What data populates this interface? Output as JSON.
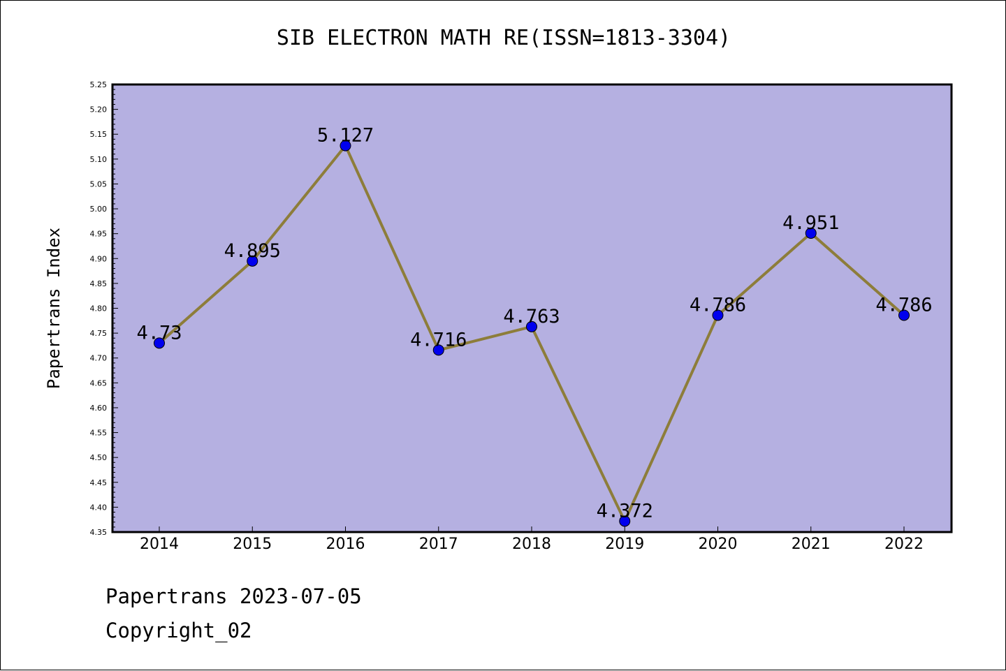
{
  "chart_data": {
    "type": "line",
    "title": "SIB ELECTRON MATH RE(ISSN=1813-3304)",
    "xlabel": "",
    "ylabel": "Papertrans Index",
    "categories": [
      "2014",
      "2015",
      "2016",
      "2017",
      "2018",
      "2019",
      "2020",
      "2021",
      "2022"
    ],
    "series": [
      {
        "values": [
          4.73,
          4.895,
          5.127,
          4.716,
          4.763,
          4.372,
          4.786,
          4.951,
          4.786
        ],
        "data_labels": [
          "4.73",
          "4.895",
          "5.127",
          "4.716",
          "4.763",
          "4.372",
          "4.786",
          "4.951",
          "4.786"
        ]
      }
    ],
    "ylim": [
      4.35,
      5.25
    ],
    "yticks": [
      "4.35",
      "4.40",
      "4.45",
      "4.50",
      "4.55",
      "4.60",
      "4.65",
      "4.70",
      "4.75",
      "4.80",
      "4.85",
      "4.90",
      "4.95",
      "5.00",
      "5.05",
      "5.10",
      "5.15",
      "5.20",
      "5.25"
    ],
    "grid": false,
    "colors": {
      "plot_background": "#b5b0e1",
      "line": "#8d7d3a",
      "marker": "#0000ee",
      "axis": "#000000"
    }
  },
  "footer": {
    "date_text": "Papertrans 2023-07-05",
    "copyright_text": "Copyright_02"
  }
}
